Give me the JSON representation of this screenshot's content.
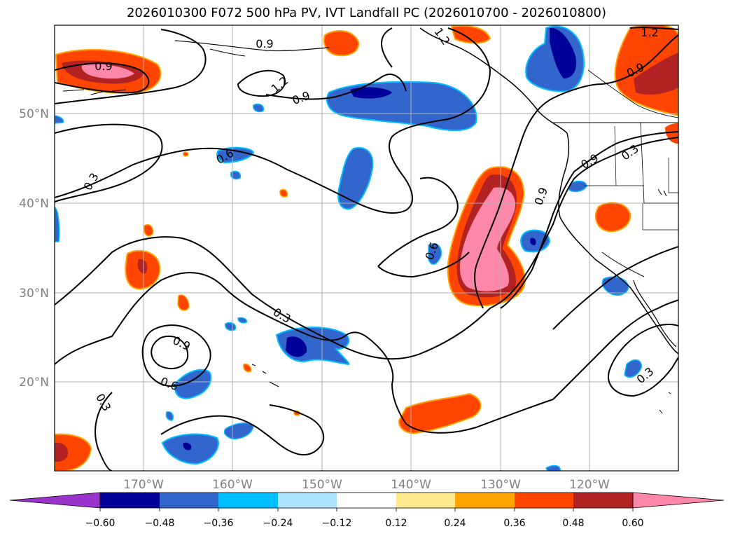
{
  "title": "2026010300 F072 500 hPa PV, IVT Landfall PC (2026010700 - 2026010800)",
  "axes": {
    "lat_labels": [
      "50°N",
      "40°N",
      "30°N",
      "20°N"
    ],
    "lon_labels": [
      "170°W",
      "160°W",
      "150°W",
      "140°W",
      "130°W",
      "120°W"
    ]
  },
  "contour_labels": [
    "0.9",
    "1.2",
    "0.9",
    "0.9",
    "1.2",
    "0.9",
    "0.6",
    "0.3",
    "0.3",
    "0.9",
    "0.6",
    "0.9",
    "0.6",
    "0.3",
    "0.3",
    "0.3",
    "0.9",
    "1.2"
  ],
  "colorbar": {
    "ticks": [
      "−0.60",
      "−0.48",
      "−0.36",
      "−0.24",
      "−0.12",
      "0.12",
      "0.24",
      "0.36",
      "0.48",
      "0.60"
    ],
    "colors": [
      "#9933cc",
      "#000099",
      "#3366cc",
      "#00bfff",
      "#aee4ff",
      "#ffffff",
      "#ffea90",
      "#ffa500",
      "#ff4500",
      "#b22222",
      "#ff88aa"
    ]
  },
  "colors": {
    "neg_strong": "#000099",
    "neg_mid": "#3366cc",
    "neg_light": "#00bfff",
    "pos_mid": "#ff4500",
    "pos_strong": "#b22222",
    "pos_max": "#ff88aa",
    "pos_light": "#ffa500"
  }
}
